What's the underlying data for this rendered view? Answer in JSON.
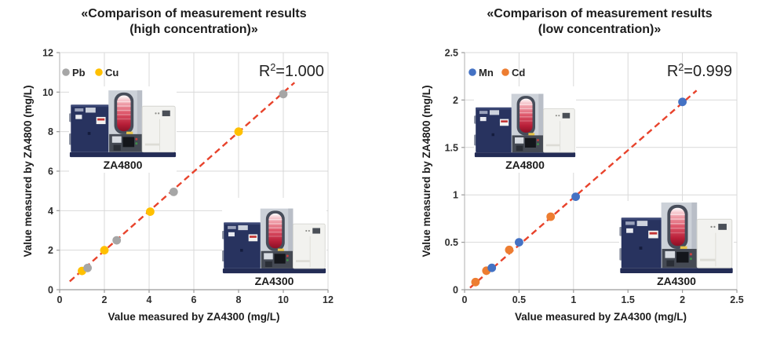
{
  "chart_data": [
    {
      "type": "scatter",
      "title": "«Comparison of measurement results (high concentration)»",
      "title_lines": [
        "«Comparison of measurement results",
        "(high concentration)»"
      ],
      "xlabel": "Value measured by ZA4300 (mg/L)",
      "ylabel": "Value measured by ZA4800 (mg/L)",
      "xlim": [
        0,
        12
      ],
      "ylim": [
        0,
        12
      ],
      "xticks": [
        0,
        2,
        4,
        6,
        8,
        10,
        12
      ],
      "yticks": [
        0,
        2,
        4,
        6,
        8,
        10,
        12
      ],
      "grid": true,
      "legend_position": "top-left",
      "r2": {
        "base": "R",
        "sup": "2",
        "value": "=1.000",
        "label": "R²=1.000"
      },
      "series": [
        {
          "name": "Pb",
          "color": "#a6a6a6",
          "points": [
            [
              1.25,
              1.1
            ],
            [
              2.55,
              2.5
            ],
            [
              5.1,
              4.95
            ],
            [
              10,
              9.9
            ]
          ]
        },
        {
          "name": "Cu",
          "color": "#ffc000",
          "points": [
            [
              1,
              0.95
            ],
            [
              2,
              2
            ],
            [
              4.05,
              3.95
            ],
            [
              8,
              8
            ]
          ]
        }
      ],
      "trendline": {
        "style": "dashed",
        "color": "#e8432c",
        "from": [
          0.45,
          0.42
        ],
        "to": [
          10.5,
          10.48
        ]
      },
      "annotations": [
        {
          "text": "ZA4800"
        },
        {
          "text": "ZA4300"
        }
      ]
    },
    {
      "type": "scatter",
      "title": "«Comparison of measurement results (low concentration)»",
      "title_lines": [
        "«Comparison of measurement results",
        "(low concentration)»"
      ],
      "xlabel": "Value measured by ZA4300 (mg/L)",
      "ylabel": "Value measured by ZA4800 (mg/L)",
      "xlim": [
        0,
        2.5
      ],
      "ylim": [
        0,
        2.5
      ],
      "xticks": [
        0,
        0.5,
        1,
        1.5,
        2,
        2.5
      ],
      "yticks": [
        0,
        0.5,
        1,
        1.5,
        2,
        2.5
      ],
      "grid": true,
      "legend_position": "top-left",
      "r2": {
        "base": "R",
        "sup": "2",
        "value": "=0.999",
        "label": "R²=0.999"
      },
      "series": [
        {
          "name": "Mn",
          "color": "#4472c4",
          "points": [
            [
              0.25,
              0.23
            ],
            [
              0.5,
              0.5
            ],
            [
              1.02,
              0.98
            ],
            [
              2,
              1.98
            ]
          ]
        },
        {
          "name": "Cd",
          "color": "#ed7d31",
          "points": [
            [
              0.1,
              0.08
            ],
            [
              0.2,
              0.2
            ],
            [
              0.41,
              0.42
            ],
            [
              0.79,
              0.77
            ]
          ]
        }
      ],
      "trendline": {
        "style": "dashed",
        "color": "#e8432c",
        "from": [
          0.05,
          0.02
        ],
        "to": [
          2.13,
          2.1
        ]
      },
      "annotations": [
        {
          "text": "ZA4800"
        },
        {
          "text": "ZA4300"
        }
      ]
    }
  ],
  "style_colors": {
    "gridline": "#d9d9d9",
    "axis": "#9b9b9b",
    "tick_text": "#2e2e2e",
    "title_text": "#1c1c1c"
  }
}
